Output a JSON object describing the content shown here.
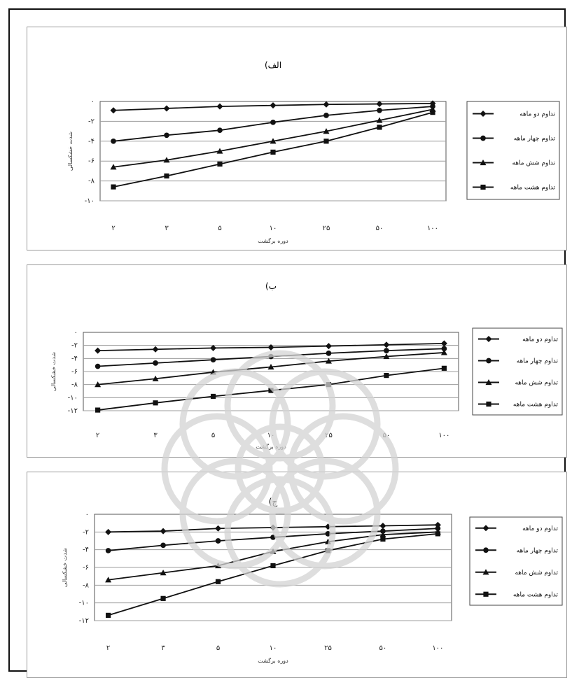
{
  "chart_data": [
    {
      "type": "line",
      "title": "(الف",
      "xlabel": "دوره برگشت",
      "ylabel": "شدت خشکسالی",
      "categories": [
        "۲",
        "۳",
        "۵",
        "۱۰",
        "۲۵",
        "۵۰",
        "۱۰۰"
      ],
      "yticks": [
        "۰",
        "-۲",
        "-۴",
        "-۶",
        "-۸",
        "-۱۰"
      ],
      "ylim": [
        -10,
        0
      ],
      "grid": true,
      "legend": "right",
      "series": [
        {
          "name": "تداوم دو ماهه",
          "marker": "diamond",
          "values": [
            -0.9,
            -0.7,
            -0.5,
            -0.4,
            -0.3,
            -0.25,
            -0.2
          ]
        },
        {
          "name": "تداوم چهار ماهه",
          "marker": "circle",
          "values": [
            -4.0,
            -3.4,
            -2.9,
            -2.1,
            -1.4,
            -0.9,
            -0.5
          ]
        },
        {
          "name": "تداوم شش ماهه",
          "marker": "triangle",
          "values": [
            -6.6,
            -5.9,
            -5.0,
            -4.0,
            -3.0,
            -1.9,
            -0.8
          ]
        },
        {
          "name": "تداوم هشت ماهه",
          "marker": "square",
          "values": [
            -8.6,
            -7.5,
            -6.3,
            -5.1,
            -4.0,
            -2.6,
            -1.1
          ]
        }
      ]
    },
    {
      "type": "line",
      "title": "(ب",
      "xlabel": "دوره برگشت",
      "ylabel": "شدت خشکسالی",
      "categories": [
        "۲",
        "۳",
        "۵",
        "۱۰",
        "۲۵",
        "۵۰",
        "۱۰۰"
      ],
      "yticks": [
        "۰",
        "-۲",
        "-۴",
        "-۶",
        "-۸",
        "-۱۰",
        "-۱۲"
      ],
      "ylim": [
        -12,
        0
      ],
      "grid": true,
      "legend": "right",
      "series": [
        {
          "name": "تداوم دو ماهه",
          "marker": "diamond",
          "values": [
            -2.8,
            -2.6,
            -2.4,
            -2.3,
            -2.1,
            -1.9,
            -1.7
          ]
        },
        {
          "name": "تداوم چهار ماهه",
          "marker": "circle",
          "values": [
            -5.2,
            -4.7,
            -4.2,
            -3.7,
            -3.2,
            -2.8,
            -2.5
          ]
        },
        {
          "name": "تداوم شش ماهه",
          "marker": "triangle",
          "values": [
            -8.0,
            -7.1,
            -6.1,
            -5.3,
            -4.4,
            -3.7,
            -3.1
          ]
        },
        {
          "name": "تداوم هشت ماهه",
          "marker": "square",
          "values": [
            -11.9,
            -10.8,
            -9.8,
            -8.9,
            -8.0,
            -6.6,
            -5.5
          ]
        }
      ]
    },
    {
      "type": "line",
      "title": "(ج",
      "xlabel": "دوره برگشت",
      "ylabel": "شدت خشکسالی",
      "categories": [
        "۲",
        "۳",
        "۵",
        "۱۰",
        "۲۵",
        "۵۰",
        "۱۰۰"
      ],
      "yticks": [
        "۰",
        "-۲",
        "-۴",
        "-۶",
        "-۸",
        "-۱۰",
        "-۱۲"
      ],
      "ylim": [
        -12,
        0
      ],
      "grid": true,
      "legend": "right",
      "series": [
        {
          "name": "تداوم دو ماهه",
          "marker": "diamond",
          "values": [
            -2.0,
            -1.9,
            -1.6,
            -1.5,
            -1.4,
            -1.3,
            -1.2
          ]
        },
        {
          "name": "تداوم چهار ماهه",
          "marker": "circle",
          "values": [
            -4.1,
            -3.5,
            -3.0,
            -2.6,
            -2.2,
            -1.9,
            -1.6
          ]
        },
        {
          "name": "تداوم شش ماهه",
          "marker": "triangle",
          "values": [
            -7.4,
            -6.6,
            -5.8,
            -4.2,
            -3.1,
            -2.3,
            -2.0
          ]
        },
        {
          "name": "تداوم هشت ماهه",
          "marker": "square",
          "values": [
            -11.4,
            -9.5,
            -7.6,
            -5.8,
            -4.1,
            -2.8,
            -2.2
          ]
        }
      ]
    }
  ]
}
